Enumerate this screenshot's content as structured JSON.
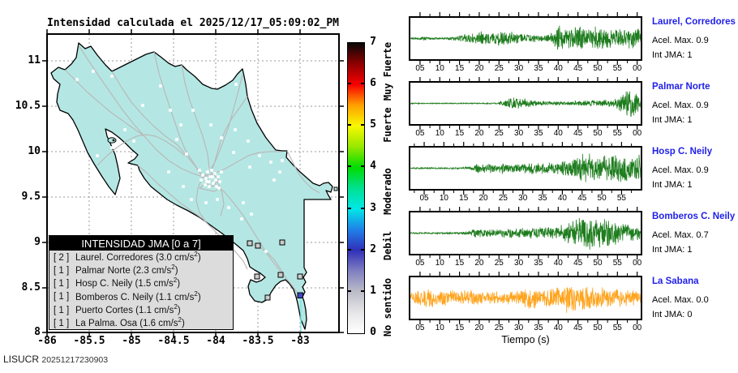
{
  "map": {
    "title": "Intensidad calculada el 2025/12/17_05:09:02_PM",
    "x_tick_labels": [
      "-86",
      "-85.5",
      "-85",
      "-84.5",
      "-84",
      "-83.5",
      "-83"
    ],
    "y_tick_labels": [
      "11",
      "10.5",
      "10",
      "9.5",
      "9",
      "8.5",
      "8"
    ],
    "land_color": "#b4e7e3",
    "road_color": "#b9b9b9",
    "grid_color": "#999999",
    "station_marker_color": "#ffffff",
    "intensity1_marker_color": "#cccccc",
    "intensity2_marker_color": "#4444c4",
    "legend": {
      "title": "INTENSIDAD JMA [0 a 7]",
      "unit": "cm/s",
      "unit_exp": "2",
      "entries": [
        {
          "intensity": "2",
          "name": "Laurel. Corredores",
          "accel": "3.0"
        },
        {
          "intensity": "1",
          "name": "Palmar Norte",
          "accel": "2.3"
        },
        {
          "intensity": "1",
          "name": "Hosp C. Neily",
          "accel": "1.5"
        },
        {
          "intensity": "1",
          "name": "Bomberos C. Neily",
          "accel": "1.1"
        },
        {
          "intensity": "1",
          "name": "Puerto Cortes",
          "accel": "1.1"
        },
        {
          "intensity": "1",
          "name": "La Palma. Osa",
          "accel": "1.6"
        }
      ]
    }
  },
  "colorbar": {
    "tick_labels": [
      "7",
      "6",
      "5",
      "4",
      "3",
      "2",
      "1",
      "0"
    ],
    "scale_labels": [
      {
        "text": "Muy Fuerte",
        "center": 6.3
      },
      {
        "text": "Fuerte",
        "center": 5.0
      },
      {
        "text": "Moderado",
        "center": 3.4
      },
      {
        "text": "Debil",
        "center": 2.1
      },
      {
        "text": "No sentido",
        "center": 0.6
      }
    ],
    "gradient": [
      "#ffffff",
      "#e6e6e8",
      "#bcbcc8",
      "#8080c0",
      "#3030b8",
      "#2080e8",
      "#00e8e8",
      "#00e090",
      "#00dc00",
      "#98e800",
      "#f8f800",
      "#ffa000",
      "#f80000",
      "#8c0000",
      "#080808"
    ]
  },
  "seismograms": {
    "xlabel": "Tiempo (s)",
    "rows": [
      {
        "name": "Laurel, Corredores",
        "accel_label": "Acel. Max. 0.9",
        "jma_label": "Int JMA: 1",
        "color": "#1e7d1e",
        "seed": 3,
        "tick_start": 0.042,
        "tick_labels": [
          "05",
          "10",
          "15",
          "20",
          "25",
          "30",
          "35",
          "40",
          "45",
          "50",
          "55",
          "00"
        ],
        "envelope": [
          [
            0,
            0.05
          ],
          [
            0.06,
            0.1
          ],
          [
            0.1,
            0.06
          ],
          [
            0.14,
            0.05
          ],
          [
            0.2,
            0.12
          ],
          [
            0.24,
            0.3
          ],
          [
            0.3,
            0.38
          ],
          [
            0.36,
            0.4
          ],
          [
            0.42,
            0.38
          ],
          [
            0.48,
            0.3
          ],
          [
            0.54,
            0.22
          ],
          [
            0.58,
            0.2
          ],
          [
            0.62,
            0.3
          ],
          [
            0.635,
            0.95
          ],
          [
            0.66,
            0.6
          ],
          [
            0.7,
            0.65
          ],
          [
            0.74,
            0.75
          ],
          [
            0.78,
            0.6
          ],
          [
            0.82,
            0.65
          ],
          [
            0.86,
            0.55
          ],
          [
            0.9,
            0.6
          ],
          [
            0.94,
            0.55
          ],
          [
            1,
            0.55
          ]
        ]
      },
      {
        "name": "Palmar Norte",
        "accel_label": "Acel. Max. 0.9",
        "jma_label": "Int JMA: 1",
        "color": "#1e7d1e",
        "seed": 7,
        "tick_start": 0.042,
        "tick_labels": [
          "05",
          "10",
          "15",
          "20",
          "25",
          "30",
          "35",
          "40",
          "45",
          "50",
          "55",
          "00"
        ],
        "envelope": [
          [
            0,
            0.03
          ],
          [
            0.3,
            0.03
          ],
          [
            0.38,
            0.04
          ],
          [
            0.42,
            0.28
          ],
          [
            0.46,
            0.38
          ],
          [
            0.5,
            0.25
          ],
          [
            0.55,
            0.14
          ],
          [
            0.62,
            0.1
          ],
          [
            0.7,
            0.12
          ],
          [
            0.76,
            0.18
          ],
          [
            0.82,
            0.16
          ],
          [
            0.86,
            0.22
          ],
          [
            0.9,
            0.3
          ],
          [
            0.935,
            0.75
          ],
          [
            0.955,
            1.0
          ],
          [
            0.975,
            0.6
          ],
          [
            1,
            0.55
          ]
        ]
      },
      {
        "name": "Hosp C. Neily",
        "accel_label": "Acel. Max. 0.9",
        "jma_label": "Int JMA: 1",
        "color": "#1e7d1e",
        "seed": 13,
        "tick_start": 0.06,
        "tick_labels": [
          "05",
          "10",
          "15",
          "20",
          "25",
          "30",
          "35",
          "40",
          "45",
          "50",
          "55"
        ],
        "envelope": [
          [
            0,
            0.04
          ],
          [
            0.22,
            0.05
          ],
          [
            0.27,
            0.12
          ],
          [
            0.3,
            0.32
          ],
          [
            0.34,
            0.28
          ],
          [
            0.4,
            0.3
          ],
          [
            0.46,
            0.28
          ],
          [
            0.52,
            0.3
          ],
          [
            0.58,
            0.32
          ],
          [
            0.64,
            0.38
          ],
          [
            0.7,
            0.45
          ],
          [
            0.735,
            1.0
          ],
          [
            0.77,
            0.85
          ],
          [
            0.81,
            0.65
          ],
          [
            0.85,
            0.75
          ],
          [
            0.89,
            0.85
          ],
          [
            0.93,
            0.7
          ],
          [
            1,
            0.8
          ]
        ]
      },
      {
        "name": "Bomberos C. Neily",
        "accel_label": "Acel. Max. 0.7",
        "jma_label": "Int JMA: 1",
        "color": "#1e7d1e",
        "seed": 21,
        "tick_start": 0.042,
        "tick_labels": [
          "05",
          "10",
          "15",
          "20",
          "25",
          "30",
          "35",
          "40",
          "45",
          "50",
          "55",
          "00"
        ],
        "envelope": [
          [
            0,
            0.04
          ],
          [
            0.22,
            0.05
          ],
          [
            0.28,
            0.25
          ],
          [
            0.34,
            0.22
          ],
          [
            0.4,
            0.25
          ],
          [
            0.46,
            0.28
          ],
          [
            0.52,
            0.3
          ],
          [
            0.58,
            0.35
          ],
          [
            0.64,
            0.4
          ],
          [
            0.68,
            0.55
          ],
          [
            0.72,
            0.85
          ],
          [
            0.76,
            0.95
          ],
          [
            0.8,
            0.8
          ],
          [
            0.84,
            0.9
          ],
          [
            0.88,
            0.7
          ],
          [
            0.92,
            0.55
          ],
          [
            0.96,
            0.45
          ],
          [
            1,
            0.4
          ]
        ]
      },
      {
        "name": "La Sabana",
        "accel_label": "Acel. Max. 0.0",
        "jma_label": "Int JMA: 0",
        "color": "#ffa41e",
        "seed": 42,
        "tick_start": 0.042,
        "tick_labels": [
          "05",
          "10",
          "15",
          "20",
          "25",
          "30",
          "35",
          "40",
          "45",
          "50",
          "55",
          "00"
        ],
        "envelope": [
          [
            0,
            0.35
          ],
          [
            0.05,
            0.45
          ],
          [
            0.08,
            0.55
          ],
          [
            0.12,
            0.38
          ],
          [
            0.16,
            0.45
          ],
          [
            0.2,
            0.4
          ],
          [
            0.25,
            0.5
          ],
          [
            0.28,
            0.42
          ],
          [
            0.32,
            0.38
          ],
          [
            0.36,
            0.35
          ],
          [
            0.4,
            0.4
          ],
          [
            0.44,
            0.38
          ],
          [
            0.5,
            0.55
          ],
          [
            0.53,
            0.7
          ],
          [
            0.56,
            0.45
          ],
          [
            0.6,
            0.5
          ],
          [
            0.65,
            0.6
          ],
          [
            0.68,
            0.8
          ],
          [
            0.71,
            0.95
          ],
          [
            0.74,
            0.7
          ],
          [
            0.77,
            0.75
          ],
          [
            0.8,
            0.6
          ],
          [
            0.84,
            0.65
          ],
          [
            0.88,
            0.55
          ],
          [
            0.92,
            0.5
          ],
          [
            0.96,
            0.45
          ],
          [
            1,
            0.42
          ]
        ]
      }
    ]
  },
  "footer": {
    "lab": "LISUCR",
    "code": "20251217230903"
  },
  "chart_data": [
    {
      "type": "map",
      "title": "Intensidad calculada el 2025/12/17_05:09:02_PM",
      "region": "Costa Rica",
      "xlim": [
        -86,
        -82.5
      ],
      "ylim": [
        8,
        11.3
      ],
      "x_ticks": [
        -86,
        -85.5,
        -85,
        -84.5,
        -84,
        -83.5,
        -83
      ],
      "y_ticks": [
        8,
        8.5,
        9,
        9.5,
        10,
        10.5,
        11
      ],
      "grid": true,
      "colorbar": {
        "range": [
          0,
          7
        ],
        "ticks": [
          0,
          1,
          2,
          3,
          4,
          5,
          6,
          7
        ],
        "labels": [
          "No sentido",
          "Debil",
          "Moderado",
          "Fuerte",
          "Muy Fuerte"
        ]
      },
      "legend_title": "INTENSIDAD JMA [0 a 7]",
      "stations": [
        {
          "name": "Laurel. Corredores",
          "jma_intensity": 2,
          "accel_cm_s2": 3.0
        },
        {
          "name": "Palmar Norte",
          "jma_intensity": 1,
          "accel_cm_s2": 2.3
        },
        {
          "name": "Hosp C. Neily",
          "jma_intensity": 1,
          "accel_cm_s2": 1.5
        },
        {
          "name": "Bomberos C. Neily",
          "jma_intensity": 1,
          "accel_cm_s2": 1.1
        },
        {
          "name": "Puerto Cortes",
          "jma_intensity": 1,
          "accel_cm_s2": 1.1
        },
        {
          "name": "La Palma. Osa",
          "jma_intensity": 1,
          "accel_cm_s2": 1.6
        }
      ]
    },
    {
      "type": "line",
      "subtype": "seismogram",
      "xlabel": "Tiempo (s)",
      "x_tick_interval_s": 5,
      "series": [
        {
          "name": "Laurel, Corredores",
          "acel_max": 0.9,
          "int_jma": 1
        },
        {
          "name": "Palmar Norte",
          "acel_max": 0.9,
          "int_jma": 1
        },
        {
          "name": "Hosp C. Neily",
          "acel_max": 0.9,
          "int_jma": 1
        },
        {
          "name": "Bomberos C. Neily",
          "acel_max": 0.7,
          "int_jma": 1
        },
        {
          "name": "La Sabana",
          "acel_max": 0.0,
          "int_jma": 0
        }
      ]
    }
  ]
}
